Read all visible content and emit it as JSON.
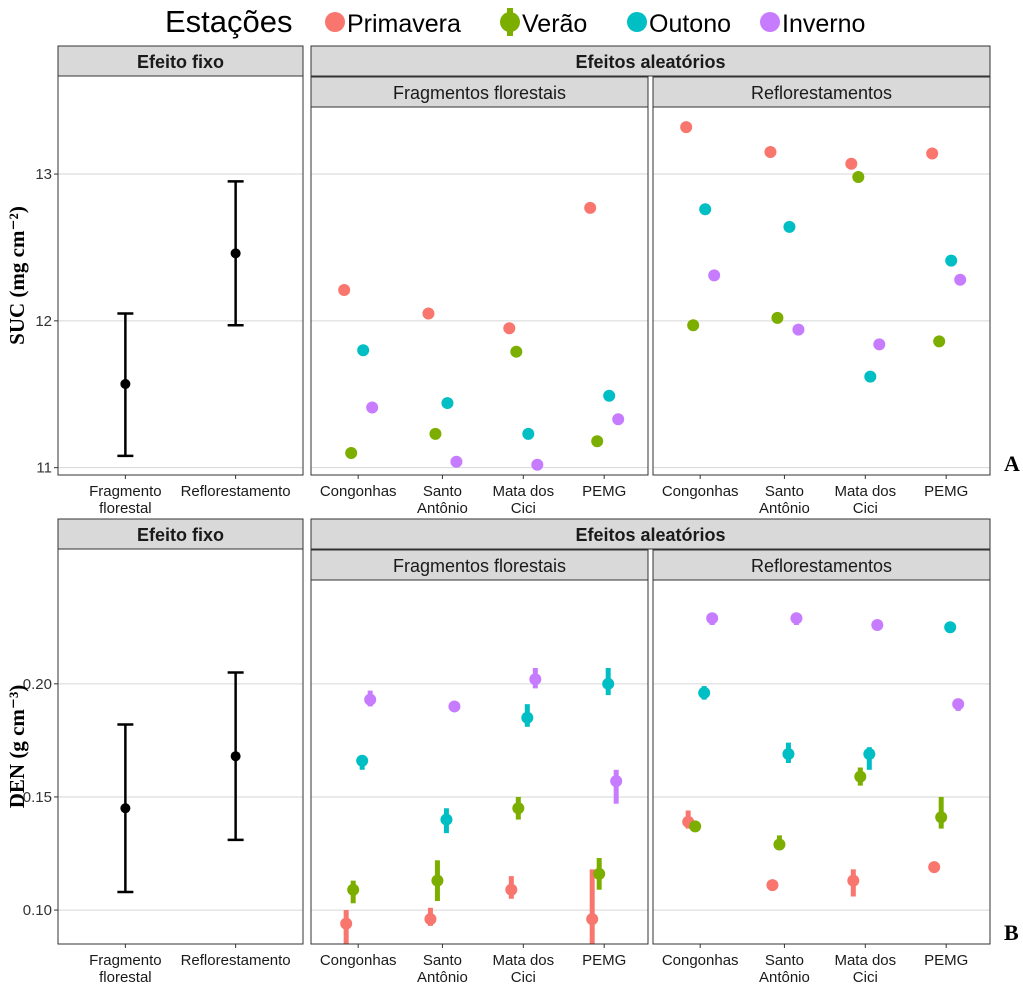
{
  "legend": {
    "title": "Estações",
    "items": [
      {
        "label": "Primavera",
        "color": "#F8766D"
      },
      {
        "label": "Verão",
        "color": "#7CAE00"
      },
      {
        "label": "Outono",
        "color": "#00BFC4"
      },
      {
        "label": "Inverno",
        "color": "#C77CFF"
      }
    ]
  },
  "strips": {
    "fixed": "Efeito fixo",
    "random": "Efeitos aleatórios",
    "fragments": "Fragmentos florestais",
    "reforest": "Reflorestamentos"
  },
  "fixed_categories": [
    "Fragmento\nflorestal",
    "Reflorestamento"
  ],
  "site_categories": [
    "Congonhas",
    "Santo\nAntônio",
    "Mata dos\nCici",
    "PEMG"
  ],
  "chart_data": [
    {
      "type": "scatter",
      "panel_letter": "A",
      "ylabel": "SUC (mg cm⁻²)",
      "ylim": [
        10.95,
        13.45
      ],
      "yticks": [
        11,
        12,
        13
      ],
      "grid": true,
      "fixed_effect": [
        {
          "category": "Fragmento florestal",
          "mean": 11.57,
          "low": 11.08,
          "high": 12.05
        },
        {
          "category": "Reflorestamento",
          "mean": 12.46,
          "low": 11.97,
          "high": 12.95
        }
      ],
      "fragments": {
        "Primavera": [
          12.21,
          12.05,
          11.95,
          12.77
        ],
        "Verão": [
          11.1,
          11.23,
          11.79,
          11.18
        ],
        "Outono": [
          11.8,
          11.44,
          11.23,
          11.49
        ],
        "Inverno": [
          11.41,
          11.04,
          11.02,
          11.33
        ]
      },
      "reforest": {
        "Primavera": [
          13.32,
          13.15,
          13.07,
          13.14
        ],
        "Verão": [
          11.97,
          12.02,
          12.98,
          11.86
        ],
        "Outono": [
          12.76,
          12.64,
          11.62,
          12.41
        ],
        "Inverno": [
          12.31,
          11.94,
          11.84,
          12.28
        ]
      }
    },
    {
      "type": "scatter",
      "panel_letter": "B",
      "ylabel": "DEN (g cm⁻³)",
      "ylim": [
        0.085,
        0.245
      ],
      "yticks": [
        0.1,
        0.15,
        0.2
      ],
      "ytick_labels": [
        "0.10",
        "0.15",
        "0.20"
      ],
      "grid": true,
      "fixed_effect": [
        {
          "category": "Fragmento florestal",
          "mean": 0.145,
          "low": 0.108,
          "high": 0.182
        },
        {
          "category": "Reflorestamento",
          "mean": 0.168,
          "low": 0.131,
          "high": 0.205
        }
      ],
      "fragments": {
        "Primavera": [
          [
            0.094,
            0.085,
            0.1
          ],
          [
            0.096,
            0.093,
            0.101
          ],
          [
            0.109,
            0.105,
            0.115
          ],
          [
            0.096,
            0.085,
            0.118
          ]
        ],
        "Verão": [
          [
            0.109,
            0.103,
            0.113
          ],
          [
            0.113,
            0.104,
            0.122
          ],
          [
            0.145,
            0.14,
            0.15
          ],
          [
            0.116,
            0.109,
            0.123
          ]
        ],
        "Outono": [
          [
            0.166,
            0.162,
            0.168
          ],
          [
            0.14,
            0.134,
            0.145
          ],
          [
            0.185,
            0.181,
            0.191
          ],
          [
            0.2,
            0.195,
            0.207
          ]
        ],
        "Inverno": [
          [
            0.193,
            0.19,
            0.197
          ],
          [
            0.19,
            0.189,
            0.191
          ],
          [
            0.202,
            0.198,
            0.207
          ],
          [
            0.157,
            0.147,
            0.162
          ]
        ]
      },
      "reforest": {
        "Primavera": [
          [
            0.139,
            0.136,
            0.144
          ],
          [
            0.111,
            0.11,
            0.112
          ],
          [
            0.113,
            0.106,
            0.118
          ],
          [
            0.119,
            0.119,
            0.119
          ]
        ],
        "Verão": [
          [
            0.137,
            0.136,
            0.138
          ],
          [
            0.129,
            0.127,
            0.133
          ],
          [
            0.159,
            0.155,
            0.163
          ],
          [
            0.141,
            0.136,
            0.15
          ]
        ],
        "Outono": [
          [
            0.196,
            0.193,
            0.199
          ],
          [
            0.169,
            0.165,
            0.174
          ],
          [
            0.169,
            0.162,
            0.172
          ],
          [
            0.225,
            0.225,
            0.225
          ]
        ],
        "Inverno": [
          [
            0.229,
            0.226,
            0.231
          ],
          [
            0.229,
            0.226,
            0.231
          ],
          [
            0.226,
            0.226,
            0.226
          ],
          [
            0.191,
            0.188,
            0.193
          ]
        ]
      }
    }
  ]
}
